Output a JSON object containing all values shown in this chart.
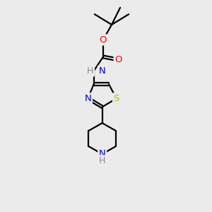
{
  "bg_color": "#ebebeb",
  "bond_color": "#000000",
  "atom_colors": {
    "N": "#0000cd",
    "O": "#ff0000",
    "S": "#b8b800",
    "H": "#888888",
    "C": "#000000"
  },
  "line_width": 1.6,
  "font_size": 9.5,
  "xlim": [
    0,
    10
  ],
  "ylim": [
    0,
    11
  ]
}
